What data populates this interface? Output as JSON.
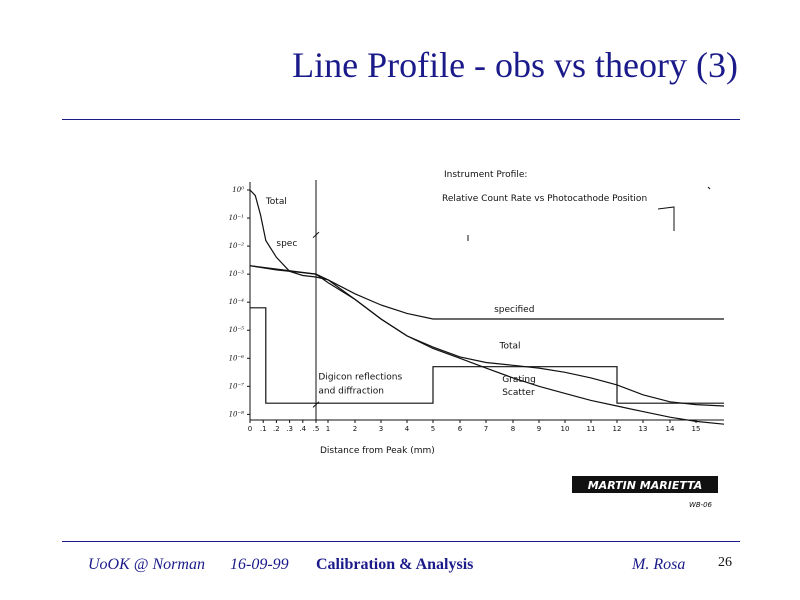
{
  "slide": {
    "title": "Line Profile - obs vs theory (3)"
  },
  "footer": {
    "venue": "UoOK @ Norman",
    "date": "16-09-99",
    "topic": "Calibration & Analysis",
    "author": "M. Rosa",
    "page_number": "26"
  },
  "logo": {
    "text": "MARTIN MARIETTA",
    "code": "WB-06"
  },
  "colors": {
    "title": "#1a1a8a",
    "rule": "#1a1a8a",
    "ink": "#111111"
  },
  "chart_data": {
    "type": "line",
    "title": "Instrument Profile:",
    "subtitle": "Relative Count Rate vs Photocathode Position",
    "xlabel": "Distance from Peak (mm)",
    "ylabel": "",
    "x_ticks": [
      {
        "label": "0",
        "x": 0
      },
      {
        "label": ".1",
        "x": 0.1
      },
      {
        "label": ".2",
        "x": 0.2
      },
      {
        "label": ".3",
        "x": 0.3
      },
      {
        "label": ".4",
        "x": 0.4
      },
      {
        "label": ".5",
        "x": 0.5
      },
      {
        "label": "1",
        "x": 1
      },
      {
        "label": "2",
        "x": 2
      },
      {
        "label": "3",
        "x": 3
      },
      {
        "label": "4",
        "x": 4
      },
      {
        "label": "5",
        "x": 5
      },
      {
        "label": "6",
        "x": 6
      },
      {
        "label": "7",
        "x": 7
      },
      {
        "label": "8",
        "x": 8
      },
      {
        "label": "9",
        "x": 9
      },
      {
        "label": "10",
        "x": 10
      },
      {
        "label": "11",
        "x": 11
      },
      {
        "label": "12",
        "x": 12
      },
      {
        "label": "13",
        "x": 13
      },
      {
        "label": "14",
        "x": 14
      },
      {
        "label": "15",
        "x": 15
      }
    ],
    "y_ticks": [
      {
        "label": "10⁰",
        "y": 0
      },
      {
        "label": "10⁻¹",
        "y": -1
      },
      {
        "label": "10⁻²",
        "y": -2
      },
      {
        "label": "10⁻³",
        "y": -3
      },
      {
        "label": "10⁻⁴",
        "y": -4
      },
      {
        "label": "10⁻⁵",
        "y": -5
      },
      {
        "label": "10⁻⁶",
        "y": -6
      },
      {
        "label": "10⁻⁷",
        "y": -7
      },
      {
        "label": "10⁻⁸",
        "y": -8
      }
    ],
    "y_scale": "log10",
    "ylim": [
      -8.2,
      0
    ],
    "xlim": [
      0,
      16
    ],
    "series": [
      {
        "name": "Total",
        "points": [
          [
            0,
            0
          ],
          [
            0.04,
            -0.2
          ],
          [
            0.08,
            -0.9
          ],
          [
            0.12,
            -1.8
          ],
          [
            0.2,
            -2.4
          ],
          [
            0.3,
            -2.9
          ],
          [
            0.4,
            -3.05
          ],
          [
            0.5,
            -3.1
          ],
          [
            1,
            -3.2
          ],
          [
            2,
            -3.9
          ],
          [
            3,
            -4.6
          ],
          [
            4,
            -5.2
          ],
          [
            5,
            -5.6
          ],
          [
            6,
            -5.95
          ],
          [
            7,
            -6.15
          ],
          [
            8,
            -6.25
          ],
          [
            9,
            -6.35
          ],
          [
            10,
            -6.5
          ],
          [
            11,
            -6.7
          ],
          [
            12,
            -6.95
          ],
          [
            13,
            -7.3
          ],
          [
            14,
            -7.55
          ],
          [
            15,
            -7.65
          ],
          [
            15.9,
            -7.7
          ]
        ]
      },
      {
        "name": "spec",
        "points": [
          [
            0,
            -2.7
          ],
          [
            0.2,
            -2.85
          ],
          [
            0.4,
            -2.95
          ],
          [
            0.5,
            -3.0
          ],
          [
            1,
            -3.3
          ],
          [
            2,
            -3.9
          ],
          [
            3,
            -4.6
          ],
          [
            4,
            -5.2
          ],
          [
            5,
            -5.65
          ],
          [
            6,
            -6.0
          ],
          [
            7,
            -6.35
          ],
          [
            8,
            -6.7
          ],
          [
            9,
            -7.0
          ],
          [
            10,
            -7.25
          ],
          [
            11,
            -7.5
          ],
          [
            12,
            -7.7
          ],
          [
            13,
            -7.9
          ],
          [
            14,
            -8.1
          ],
          [
            15,
            -8.25
          ],
          [
            15.9,
            -8.35
          ]
        ]
      },
      {
        "name": "specified",
        "points": [
          [
            0,
            -2.7
          ],
          [
            0.5,
            -3.0
          ],
          [
            1,
            -3.2
          ],
          [
            2,
            -3.7
          ],
          [
            3,
            -4.1
          ],
          [
            4,
            -4.4
          ],
          [
            5,
            -4.6
          ],
          [
            15.9,
            -4.6
          ]
        ]
      },
      {
        "name": "Digicon reflections and diffraction",
        "points": [
          [
            0,
            -4.2
          ],
          [
            0.12,
            -4.2
          ],
          [
            0.12,
            -7.6
          ],
          [
            5,
            -7.6
          ],
          [
            5,
            -6.3
          ],
          [
            12,
            -6.3
          ],
          [
            12,
            -7.6
          ],
          [
            15.9,
            -7.6
          ]
        ]
      }
    ],
    "annotations": [
      {
        "text": "Total",
        "x": 0.12,
        "y": -0.5
      },
      {
        "text": "spec",
        "x": 0.2,
        "y": -2.0
      },
      {
        "text": "specified",
        "x": 7.3,
        "y": -4.35
      },
      {
        "text": "Total",
        "x": 7.5,
        "y": -5.65
      },
      {
        "text": "Digicon reflections",
        "x": 0.6,
        "y": -6.75
      },
      {
        "text": "and diffraction",
        "x": 0.6,
        "y": -7.25
      },
      {
        "text": "Grating",
        "x": 7.6,
        "y": -6.85
      },
      {
        "text": "Scatter",
        "x": 7.6,
        "y": -7.3
      }
    ],
    "grid": false
  }
}
